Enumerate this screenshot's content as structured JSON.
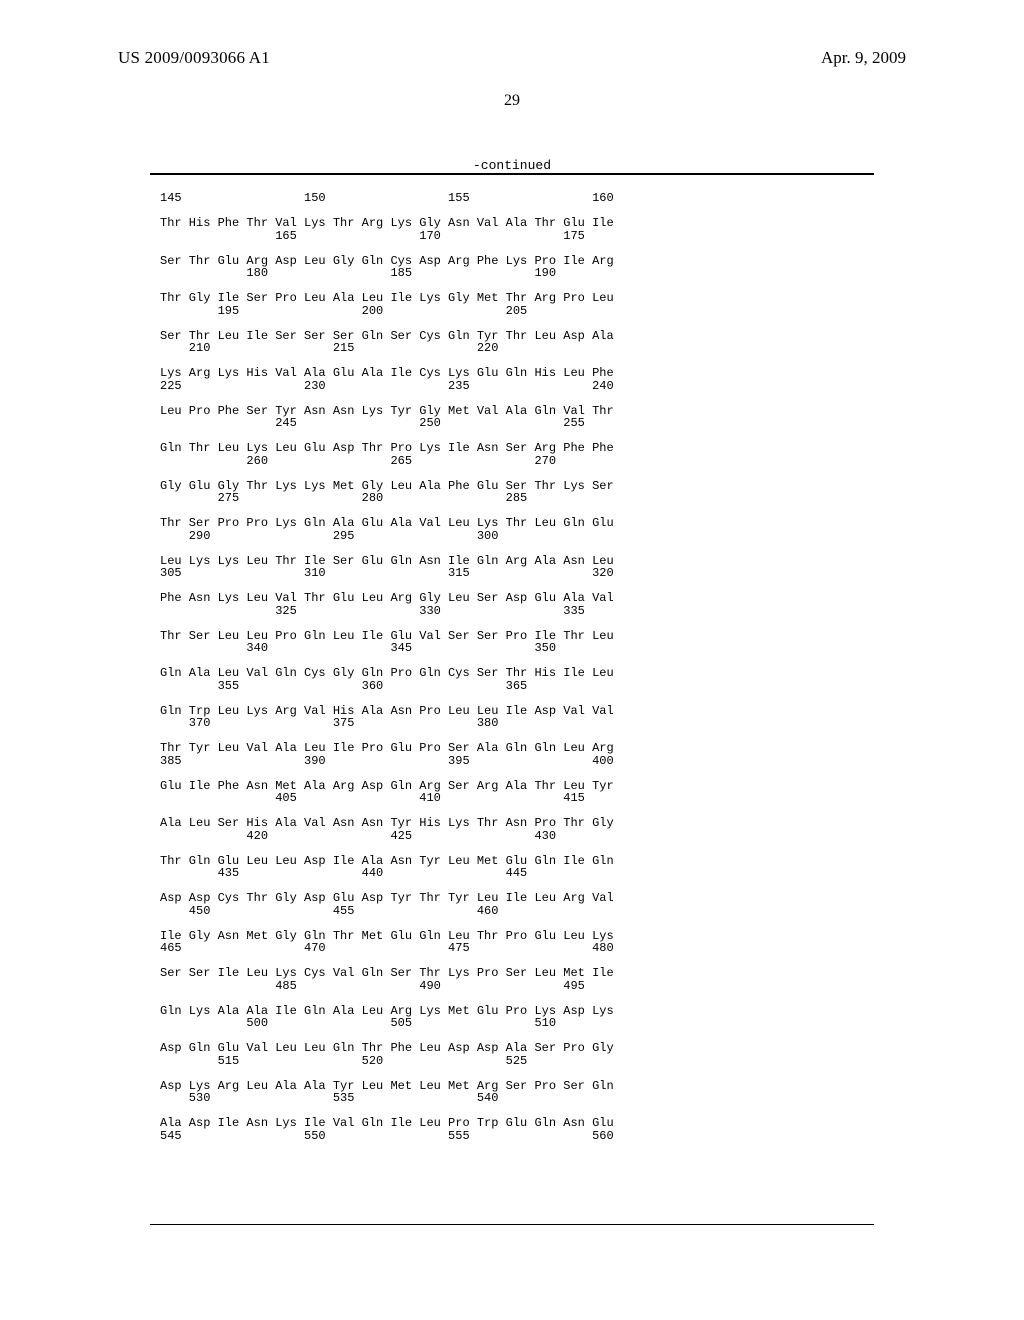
{
  "header": {
    "publication_number": "US 2009/0093066 A1",
    "publication_date": "Apr. 9, 2009",
    "page_number": "29",
    "continued_label": "-continued"
  },
  "sequence_block": "145                 150                 155                 160\n\nThr His Phe Thr Val Lys Thr Arg Lys Gly Asn Val Ala Thr Glu Ile\n                165                 170                 175\n\nSer Thr Glu Arg Asp Leu Gly Gln Cys Asp Arg Phe Lys Pro Ile Arg\n            180                 185                 190\n\nThr Gly Ile Ser Pro Leu Ala Leu Ile Lys Gly Met Thr Arg Pro Leu\n        195                 200                 205\n\nSer Thr Leu Ile Ser Ser Ser Gln Ser Cys Gln Tyr Thr Leu Asp Ala\n    210                 215                 220\n\nLys Arg Lys His Val Ala Glu Ala Ile Cys Lys Glu Gln His Leu Phe\n225                 230                 235                 240\n\nLeu Pro Phe Ser Tyr Asn Asn Lys Tyr Gly Met Val Ala Gln Val Thr\n                245                 250                 255\n\nGln Thr Leu Lys Leu Glu Asp Thr Pro Lys Ile Asn Ser Arg Phe Phe\n            260                 265                 270\n\nGly Glu Gly Thr Lys Lys Met Gly Leu Ala Phe Glu Ser Thr Lys Ser\n        275                 280                 285\n\nThr Ser Pro Pro Lys Gln Ala Glu Ala Val Leu Lys Thr Leu Gln Glu\n    290                 295                 300\n\nLeu Lys Lys Leu Thr Ile Ser Glu Gln Asn Ile Gln Arg Ala Asn Leu\n305                 310                 315                 320\n\nPhe Asn Lys Leu Val Thr Glu Leu Arg Gly Leu Ser Asp Glu Ala Val\n                325                 330                 335\n\nThr Ser Leu Leu Pro Gln Leu Ile Glu Val Ser Ser Pro Ile Thr Leu\n            340                 345                 350\n\nGln Ala Leu Val Gln Cys Gly Gln Pro Gln Cys Ser Thr His Ile Leu\n        355                 360                 365\n\nGln Trp Leu Lys Arg Val His Ala Asn Pro Leu Leu Ile Asp Val Val\n    370                 375                 380\n\nThr Tyr Leu Val Ala Leu Ile Pro Glu Pro Ser Ala Gln Gln Leu Arg\n385                 390                 395                 400\n\nGlu Ile Phe Asn Met Ala Arg Asp Gln Arg Ser Arg Ala Thr Leu Tyr\n                405                 410                 415\n\nAla Leu Ser His Ala Val Asn Asn Tyr His Lys Thr Asn Pro Thr Gly\n            420                 425                 430\n\nThr Gln Glu Leu Leu Asp Ile Ala Asn Tyr Leu Met Glu Gln Ile Gln\n        435                 440                 445\n\nAsp Asp Cys Thr Gly Asp Glu Asp Tyr Thr Tyr Leu Ile Leu Arg Val\n    450                 455                 460\n\nIle Gly Asn Met Gly Gln Thr Met Glu Gln Leu Thr Pro Glu Leu Lys\n465                 470                 475                 480\n\nSer Ser Ile Leu Lys Cys Val Gln Ser Thr Lys Pro Ser Leu Met Ile\n                485                 490                 495\n\nGln Lys Ala Ala Ile Gln Ala Leu Arg Lys Met Glu Pro Lys Asp Lys\n            500                 505                 510\n\nAsp Gln Glu Val Leu Leu Gln Thr Phe Leu Asp Asp Ala Ser Pro Gly\n        515                 520                 525\n\nAsp Lys Arg Leu Ala Ala Tyr Leu Met Leu Met Arg Ser Pro Ser Gln\n    530                 535                 540\n\nAla Asp Ile Asn Lys Ile Val Gln Ile Leu Pro Trp Glu Gln Asn Glu\n545                 550                 555                 560"
}
